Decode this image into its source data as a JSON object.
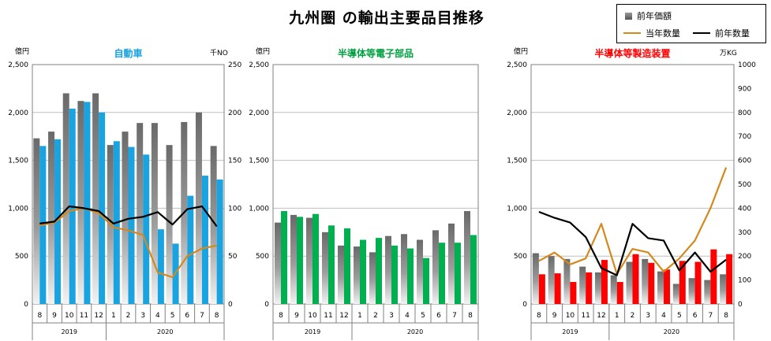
{
  "page": {
    "title": "九州圏 の輸出主要品目推移"
  },
  "legend": {
    "items": [
      {
        "label": "前年価額",
        "color": "#707070",
        "kind": "box"
      },
      {
        "label": "当年数量",
        "color": "#D4891E",
        "kind": "line"
      },
      {
        "label": "前年数量",
        "color": "#000000",
        "kind": "line"
      }
    ]
  },
  "chart_data": [
    {
      "type": "bar",
      "title": "自動車",
      "title_color": "#19A3E0",
      "left_unit": "億円",
      "right_unit": "千NO",
      "categories": [
        "8",
        "9",
        "10",
        "11",
        "12",
        "1",
        "2",
        "3",
        "4",
        "5",
        "6",
        "7",
        "8"
      ],
      "year_labels": [
        "2019",
        "2020"
      ],
      "left_axis": {
        "range": [
          0,
          2500
        ],
        "ticks": [
          "0",
          "500",
          "1,000",
          "1,500",
          "2,000",
          "2,500"
        ]
      },
      "right_axis": {
        "range": [
          0,
          250
        ],
        "ticks": [
          "0",
          "50",
          "100",
          "150",
          "200",
          "250"
        ]
      },
      "bar_color": "#19A3E0",
      "series": [
        {
          "name": "前年価額",
          "kind": "bar-gradient",
          "axis": "left",
          "values": [
            1730,
            1800,
            2200,
            2120,
            2200,
            1660,
            1800,
            1890,
            1890,
            1660,
            1900,
            2000,
            1650
          ]
        },
        {
          "kind": "bar",
          "axis": "left",
          "values": [
            1650,
            1720,
            2040,
            2110,
            2000,
            1700,
            1640,
            1560,
            780,
            630,
            1130,
            1340,
            1300
          ]
        },
        {
          "name": "当年数量",
          "kind": "line",
          "axis": "right",
          "color": "#D4891E",
          "values": [
            82,
            85,
            97,
            100,
            95,
            80,
            77,
            72,
            33,
            28,
            50,
            58,
            61
          ]
        },
        {
          "name": "前年数量",
          "kind": "line",
          "axis": "right",
          "color": "#000000",
          "values": [
            84,
            86,
            102,
            100,
            97,
            84,
            89,
            91,
            96,
            83,
            99,
            102,
            81
          ]
        }
      ]
    },
    {
      "type": "bar",
      "title": "半導体等電子部品",
      "title_color": "#00A040",
      "left_unit": "億円",
      "right_unit": "",
      "categories": [
        "8",
        "9",
        "10",
        "11",
        "12",
        "1",
        "2",
        "3",
        "4",
        "5",
        "6",
        "7",
        "8"
      ],
      "year_labels": [
        "2019",
        "2020"
      ],
      "left_axis": {
        "range": [
          0,
          2500
        ],
        "ticks": [
          "0",
          "500",
          "1,000",
          "1,500",
          "2,000",
          "2,500"
        ]
      },
      "bar_color": "#00B050",
      "series": [
        {
          "name": "前年価額",
          "kind": "bar-gradient",
          "axis": "left",
          "values": [
            850,
            930,
            900,
            750,
            610,
            600,
            540,
            710,
            730,
            670,
            770,
            840,
            970
          ]
        },
        {
          "kind": "bar",
          "axis": "left",
          "values": [
            970,
            910,
            940,
            820,
            790,
            670,
            690,
            610,
            580,
            480,
            640,
            640,
            720
          ]
        }
      ]
    },
    {
      "type": "bar",
      "title": "半導体等製造装置",
      "title_color": "#FF0000",
      "left_unit": "億円",
      "right_unit": "万KG",
      "categories": [
        "8",
        "9",
        "10",
        "11",
        "12",
        "1",
        "2",
        "3",
        "4",
        "5",
        "6",
        "7",
        "8"
      ],
      "year_labels": [
        "2019",
        "2020"
      ],
      "left_axis": {
        "range": [
          0,
          2500
        ],
        "ticks": [
          "0",
          "500",
          "1,000",
          "1,500",
          "2,000",
          "2,500"
        ]
      },
      "right_axis": {
        "range": [
          0,
          1000
        ],
        "ticks": [
          "0",
          "100",
          "200",
          "300",
          "400",
          "500",
          "600",
          "700",
          "800",
          "900",
          "1000"
        ]
      },
      "bar_color": "#FF0000",
      "series": [
        {
          "name": "前年価額",
          "kind": "bar-gradient",
          "axis": "left",
          "values": [
            530,
            500,
            470,
            390,
            330,
            300,
            440,
            470,
            340,
            210,
            270,
            250,
            310
          ]
        },
        {
          "kind": "bar",
          "axis": "left",
          "values": [
            310,
            320,
            230,
            330,
            460,
            230,
            520,
            430,
            360,
            450,
            440,
            570,
            520
          ]
        },
        {
          "name": "当年数量",
          "kind": "line",
          "axis": "right",
          "color": "#D4891E",
          "values": [
            180,
            215,
            165,
            190,
            335,
            125,
            230,
            215,
            135,
            190,
            265,
            400,
            570
          ]
        },
        {
          "name": "前年数量",
          "kind": "line",
          "axis": "right",
          "color": "#000000",
          "values": [
            385,
            360,
            340,
            280,
            150,
            120,
            335,
            275,
            265,
            140,
            215,
            135,
            185
          ]
        }
      ]
    }
  ]
}
